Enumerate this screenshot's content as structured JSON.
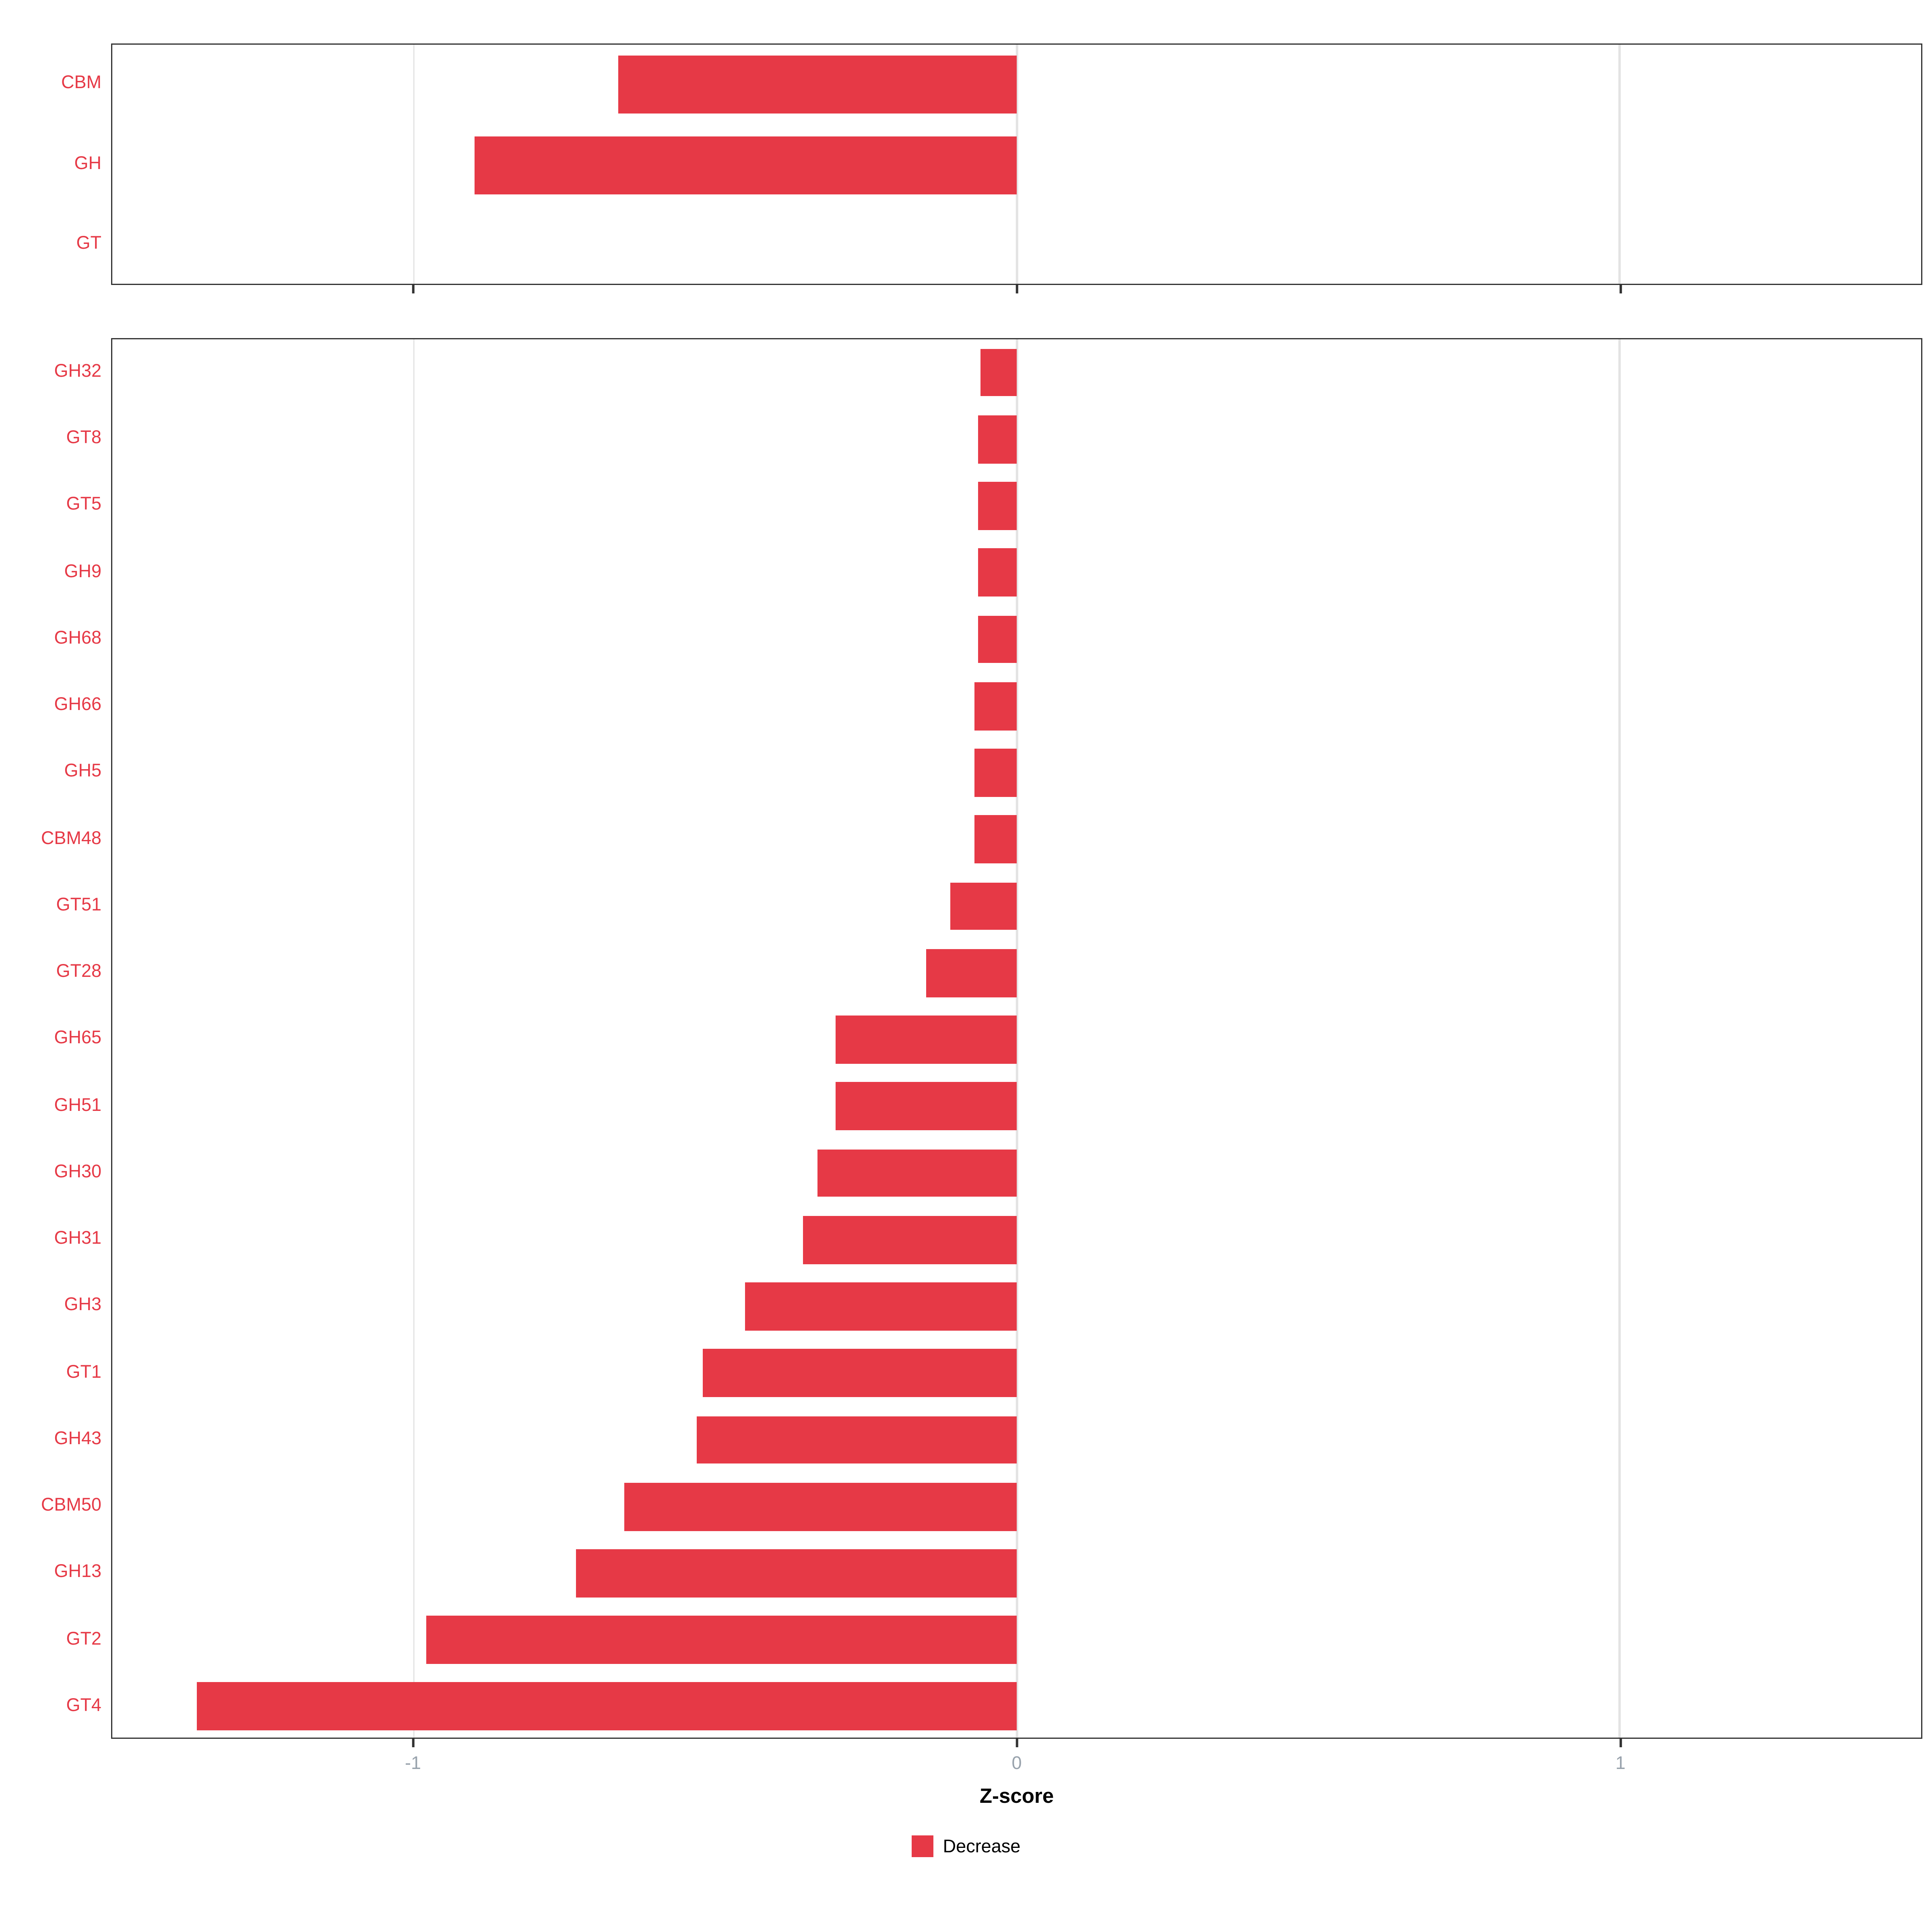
{
  "chart_data": {
    "type": "bar",
    "orientation": "horizontal",
    "xlabel": "Z-score",
    "x_ticks": [
      -1,
      0,
      1
    ],
    "xlim": [
      -1.5,
      1.5
    ],
    "grid": "on",
    "legend": {
      "label": "Decrease",
      "position": "bottom"
    },
    "colors": {
      "bar": "#E63946",
      "axis_label_y": "#E63946",
      "axis_tick_text": "#98A2AC",
      "grid": "#E3E3E3",
      "panel_border": "#333333"
    },
    "panels": [
      {
        "name": "top",
        "categories": [
          "CBM",
          "GH",
          "GT"
        ],
        "values": [
          -0.66,
          -0.9,
          0
        ]
      },
      {
        "name": "bottom",
        "categories": [
          "GH32",
          "GT8",
          "GT5",
          "GH9",
          "GH68",
          "GH66",
          "GH5",
          "CBM48",
          "GT51",
          "GT28",
          "GH65",
          "GH51",
          "GH30",
          "GH31",
          "GH3",
          "GT1",
          "GH43",
          "CBM50",
          "GH13",
          "GT2",
          "GT4"
        ],
        "values": [
          -0.06,
          -0.065,
          -0.065,
          -0.065,
          -0.065,
          -0.07,
          -0.07,
          -0.07,
          -0.11,
          -0.15,
          -0.3,
          -0.3,
          -0.33,
          -0.355,
          -0.45,
          -0.52,
          -0.53,
          -0.65,
          -0.73,
          -0.98,
          -1.36
        ]
      }
    ]
  }
}
